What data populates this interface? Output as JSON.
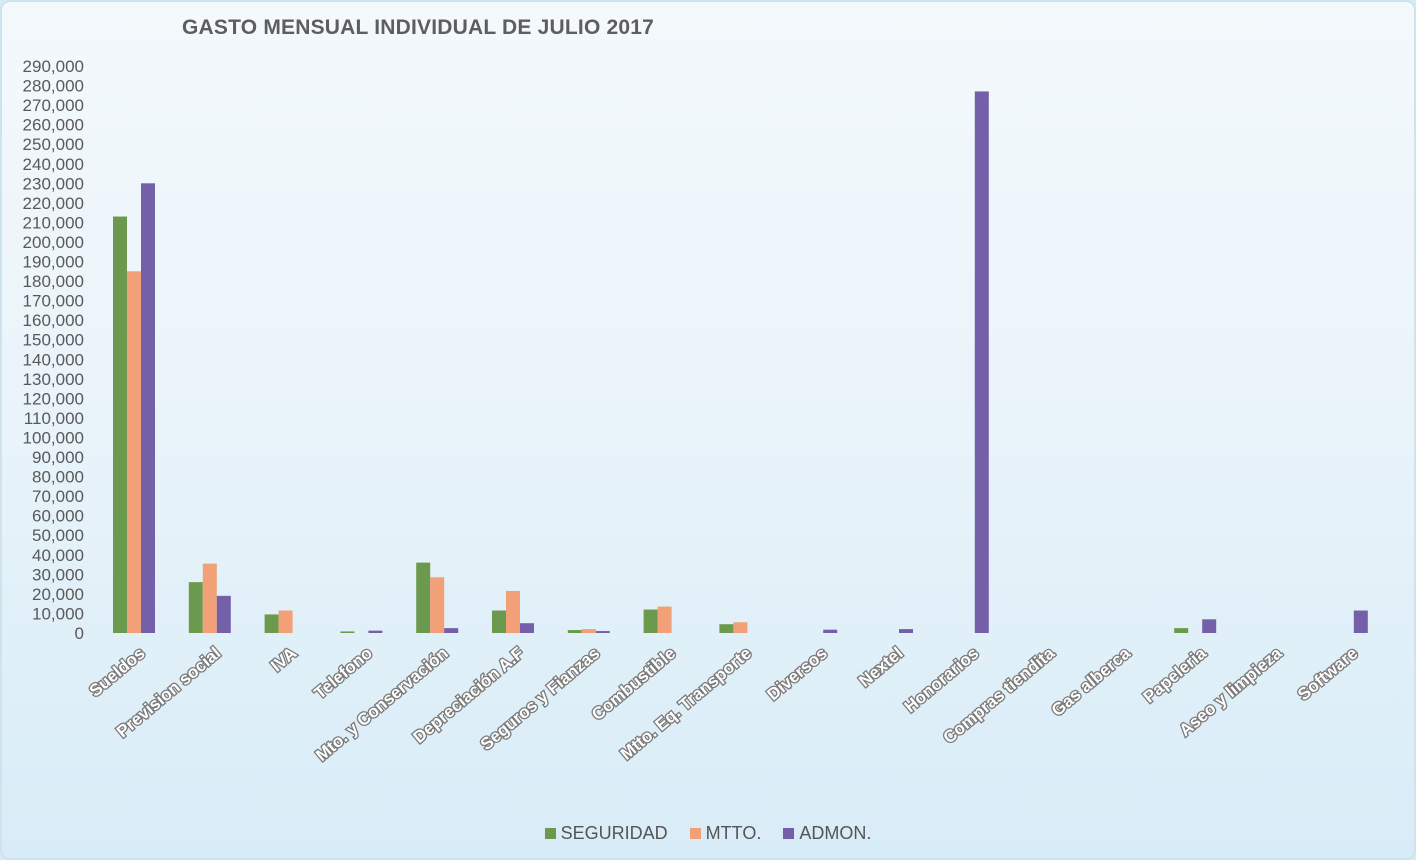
{
  "chart_data": {
    "type": "bar",
    "title": "GASTO MENSUAL INDIVIDUAL DE JULIO 2017",
    "xlabel": "",
    "ylabel": "",
    "ylim": [
      0,
      290000
    ],
    "ytick_step": 10000,
    "grid": false,
    "legend_position": "bottom",
    "categories": [
      "Sueldos",
      "Prevision social",
      "IVA",
      "Telefono",
      "Mto. y Conservación",
      "Depreciación A.F",
      "Seguros y Fianzas",
      "Combustible",
      "Mtto. Eq. Transporte",
      "Diversos",
      "Nextel",
      "Honorarios",
      "Compras tiendita",
      "Gas alberca",
      "Papeleria",
      "Aseo y limpieza",
      "Software"
    ],
    "series": [
      {
        "name": "SEGURIDAD",
        "color": "#6b9a4e",
        "values": [
          213000,
          26000,
          9500,
          800,
          36000,
          11500,
          1500,
          12000,
          4500,
          0,
          0,
          0,
          0,
          0,
          2500,
          0,
          0
        ]
      },
      {
        "name": "MTTO.",
        "color": "#f2a077",
        "values": [
          185000,
          35500,
          11500,
          0,
          28500,
          21500,
          2000,
          13500,
          5500,
          0,
          0,
          0,
          0,
          0,
          0,
          0,
          0
        ]
      },
      {
        "name": "ADMON.",
        "color": "#7460a8",
        "values": [
          230000,
          19000,
          0,
          1200,
          2500,
          5000,
          1000,
          0,
          0,
          1700,
          2000,
          277000,
          0,
          0,
          7000,
          0,
          11500
        ]
      }
    ]
  }
}
